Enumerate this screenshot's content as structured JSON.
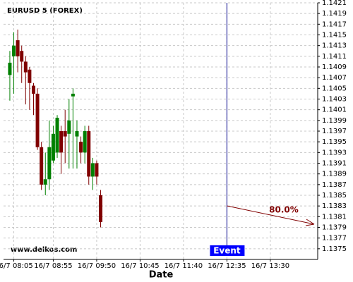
{
  "chart_data": {
    "type": "candlestick",
    "title": "EURUSD 5 (FOREX)",
    "x_label": "Date",
    "watermark": "www.delkos.com",
    "x": [
      "16/7 08:00",
      "16/7 08:05",
      "16/7 08:10",
      "16/7 08:15",
      "16/7 08:20",
      "16/7 08:25",
      "16/7 08:30",
      "16/7 08:35",
      "16/7 08:40",
      "16/7 08:45",
      "16/7 08:50",
      "16/7 08:55",
      "16/7 09:00",
      "16/7 09:05",
      "16/7 09:10",
      "16/7 09:15",
      "16/7 09:20",
      "16/7 09:25",
      "16/7 09:30",
      "16/7 09:35",
      "16/7 09:40",
      "16/7 09:45",
      "16/7 09:50",
      "16/7 09:55"
    ],
    "open": [
      1.14075,
      1.1411,
      1.1414,
      1.1412,
      1.141,
      1.14085,
      1.14055,
      1.1404,
      1.1394,
      1.1387,
      1.1388,
      1.13915,
      1.1393,
      1.1397,
      1.1397,
      1.13965,
      1.14035,
      1.1396,
      1.1395,
      1.1393,
      1.1397,
      1.13885,
      1.1391,
      1.1385
    ],
    "high": [
      1.1412,
      1.14155,
      1.1416,
      1.1413,
      1.1411,
      1.1409,
      1.1406,
      1.1405,
      1.1395,
      1.1393,
      1.1399,
      1.1398,
      1.14,
      1.1398,
      1.1401,
      1.1403,
      1.1405,
      1.1399,
      1.1396,
      1.1398,
      1.1398,
      1.1392,
      1.13915,
      1.1386
    ],
    "low": [
      1.14027,
      1.1404,
      1.1408,
      1.1406,
      1.1402,
      1.1401,
      1.14,
      1.13935,
      1.1386,
      1.1385,
      1.1386,
      1.1391,
      1.1392,
      1.1389,
      1.1391,
      1.139,
      1.139,
      1.139,
      1.1391,
      1.1391,
      1.1387,
      1.1386,
      1.1387,
      1.1379
    ],
    "close": [
      1.14098,
      1.1413,
      1.1411,
      1.141,
      1.1408,
      1.1406,
      1.1404,
      1.1394,
      1.1387,
      1.1388,
      1.1394,
      1.13965,
      1.13995,
      1.1393,
      1.1396,
      1.1399,
      1.1404,
      1.1397,
      1.1393,
      1.1397,
      1.13885,
      1.1391,
      1.13885,
      1.138
    ],
    "up_color": "#008000",
    "down_color": "#800000",
    "xlim": [
      "16/7 07:52",
      "16/7 14:30"
    ],
    "xticks": [
      "16/7 08:05",
      "16/7 08:55",
      "16/7 09:50",
      "16/7 10:45",
      "16/7 11:40",
      "16/7 12:35",
      "16/7 13:30"
    ],
    "ylim": [
      1.1373,
      1.1421
    ],
    "yticks": [
      1.1375,
      1.1377,
      1.1379,
      1.1381,
      1.1383,
      1.1385,
      1.1387,
      1.1389,
      1.1391,
      1.1393,
      1.1395,
      1.1397,
      1.1399,
      1.1401,
      1.1403,
      1.1405,
      1.1407,
      1.1409,
      1.1411,
      1.1413,
      1.1415,
      1.1417,
      1.1419,
      1.1421
    ],
    "grid": true,
    "event": {
      "label": "Event",
      "x": "16/7 12:35",
      "color": "#0000ff"
    },
    "annotation": {
      "label": "80.0%",
      "color": "#800000"
    }
  }
}
